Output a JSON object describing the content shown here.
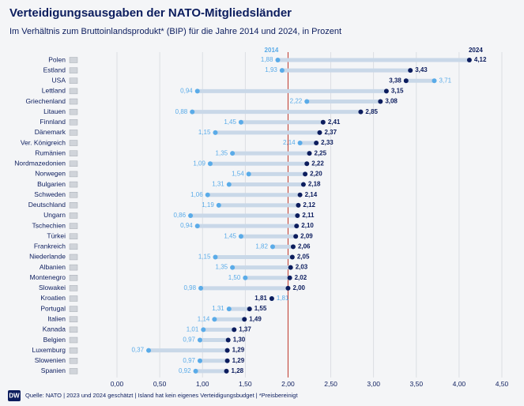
{
  "chart_data": {
    "type": "dumbbell",
    "title": "Verteidigungsausgaben der NATO-Mitgliedsländer",
    "subtitle": "Im Verhältnis zum Bruttoinlandsprodukt* (BIP) für die Jahre 2014 und 2024, in Prozent",
    "categories": [
      "Polen",
      "Estland",
      "USA",
      "Lettland",
      "Griechenland",
      "Litauen",
      "Finnland",
      "Dänemark",
      "Ver. Königreich",
      "Rumänien",
      "Nordmazedonien",
      "Norwegen",
      "Bulgarien",
      "Schweden",
      "Deutschland",
      "Ungarn",
      "Tschechien",
      "Türkei",
      "Frankreich",
      "Niederlande",
      "Albanien",
      "Montenegro",
      "Slowakei",
      "Kroatien",
      "Portugal",
      "Italien",
      "Kanada",
      "Belgien",
      "Luxemburg",
      "Slowenien",
      "Spanien"
    ],
    "series": [
      {
        "name": "2014",
        "color": "#5aabe8",
        "values": [
          1.88,
          1.93,
          3.71,
          0.94,
          2.22,
          0.88,
          1.45,
          1.15,
          2.14,
          1.35,
          1.09,
          1.54,
          1.31,
          1.06,
          1.19,
          0.86,
          0.94,
          1.45,
          1.82,
          1.15,
          1.35,
          1.5,
          0.98,
          1.81,
          1.31,
          1.14,
          1.01,
          0.97,
          0.37,
          0.97,
          0.92
        ],
        "value_labels": [
          "1,88",
          "1,93",
          "3,71",
          "0,94",
          "2,22",
          "0,88",
          "1,45",
          "1,15",
          "2,14",
          "1,35",
          "1,09",
          "1,54",
          "1,31",
          "1,06",
          "1,19",
          "0,86",
          "0,94",
          "1,45",
          "1,82",
          "1,15",
          "1,35",
          "1,50",
          "0,98",
          "1,81",
          "1,31",
          "1,14",
          "1,01",
          "0,97",
          "0,37",
          "0,97",
          "0,92"
        ]
      },
      {
        "name": "2024",
        "color": "#0c1d5e",
        "values": [
          4.12,
          3.43,
          3.38,
          3.15,
          3.08,
          2.85,
          2.41,
          2.37,
          2.33,
          2.25,
          2.22,
          2.2,
          2.18,
          2.14,
          2.12,
          2.11,
          2.1,
          2.09,
          2.06,
          2.05,
          2.03,
          2.02,
          2.0,
          1.81,
          1.55,
          1.49,
          1.37,
          1.3,
          1.29,
          1.29,
          1.28
        ],
        "value_labels": [
          "4,12",
          "3,43",
          "3,38",
          "3,15",
          "3,08",
          "2,85",
          "2,41",
          "2,37",
          "2,33",
          "2,25",
          "2,22",
          "2,20",
          "2,18",
          "2,14",
          "2,12",
          "2,11",
          "2,10",
          "2,09",
          "2,06",
          "2,05",
          "2,03",
          "2,02",
          "2,00",
          "1,81",
          "1,55",
          "1,49",
          "1,37",
          "1,30",
          "1,29",
          "1,29",
          "1,28"
        ]
      }
    ],
    "xlim": [
      0,
      4.5
    ],
    "xticks": [
      {
        "value": 0,
        "label": "0,00"
      },
      {
        "value": 0.5,
        "label": "0,50"
      },
      {
        "value": 1,
        "label": "1,00"
      },
      {
        "value": 1.5,
        "label": "1,50"
      },
      {
        "value": 2,
        "label": "2,00"
      },
      {
        "value": 2.5,
        "label": "2,50"
      },
      {
        "value": 3,
        "label": "3,00"
      },
      {
        "value": 3.5,
        "label": "3,50"
      },
      {
        "value": 4,
        "label": "4,00"
      },
      {
        "value": 4.5,
        "label": "4,50"
      }
    ],
    "reference_line": 2,
    "reference_color": "#c0392b",
    "grid": true,
    "source": "Quelle: NATO | 2023 und 2024 geschätzt | Island hat kein eigenes Verteidigungsbudget | *Preisbereinigt"
  }
}
